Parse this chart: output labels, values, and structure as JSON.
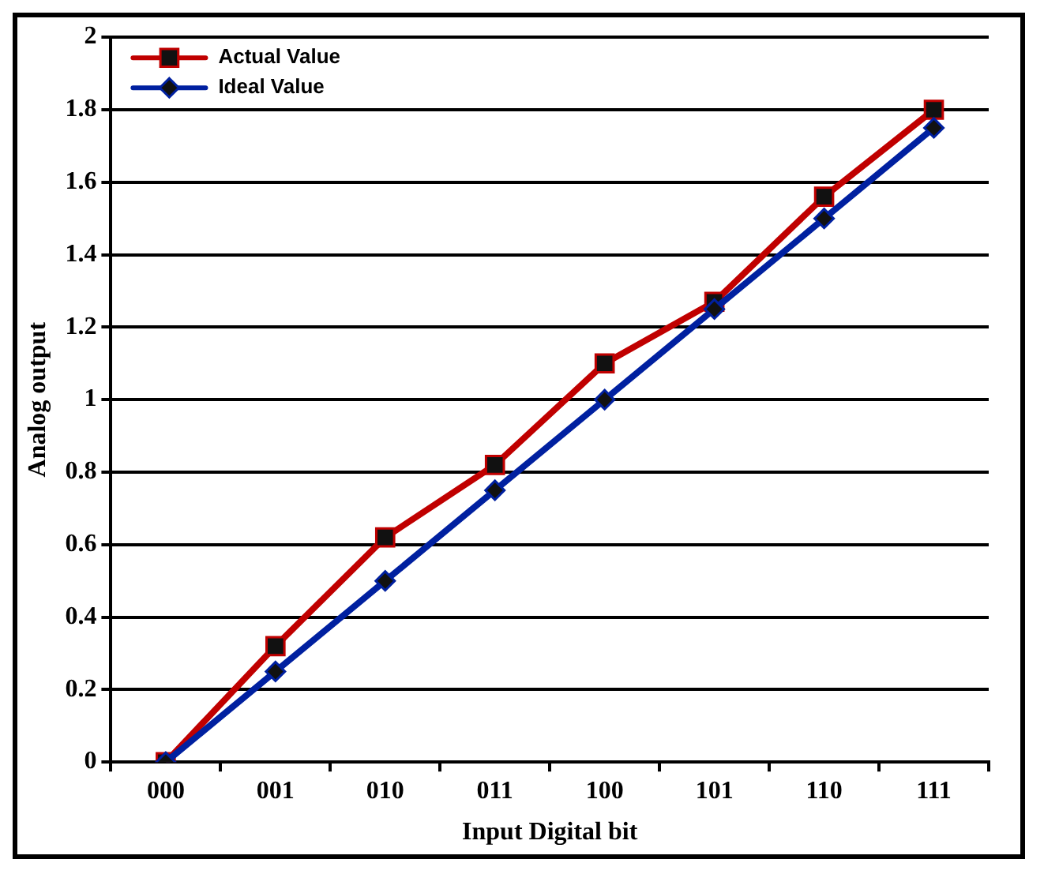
{
  "chart_data": {
    "type": "line",
    "xlabel": "Input Digital bit",
    "ylabel": "Analog output",
    "categories": [
      "000",
      "001",
      "010",
      "011",
      "100",
      "101",
      "110",
      "111"
    ],
    "series": [
      {
        "name": "Actual Value",
        "color": "#c00000",
        "marker": "square",
        "values": [
          0,
          0.32,
          0.62,
          0.82,
          1.1,
          1.27,
          1.56,
          1.8
        ]
      },
      {
        "name": "Ideal Value",
        "color": "#0020a0",
        "marker": "diamond",
        "values": [
          0,
          0.25,
          0.5,
          0.75,
          1.0,
          1.25,
          1.5,
          1.75
        ]
      }
    ],
    "ylim": [
      0,
      2
    ],
    "yticks": [
      0,
      0.2,
      0.4,
      0.6,
      0.8,
      1,
      1.2,
      1.4,
      1.6,
      1.8,
      2
    ],
    "grid": "y",
    "legend": "top left"
  }
}
